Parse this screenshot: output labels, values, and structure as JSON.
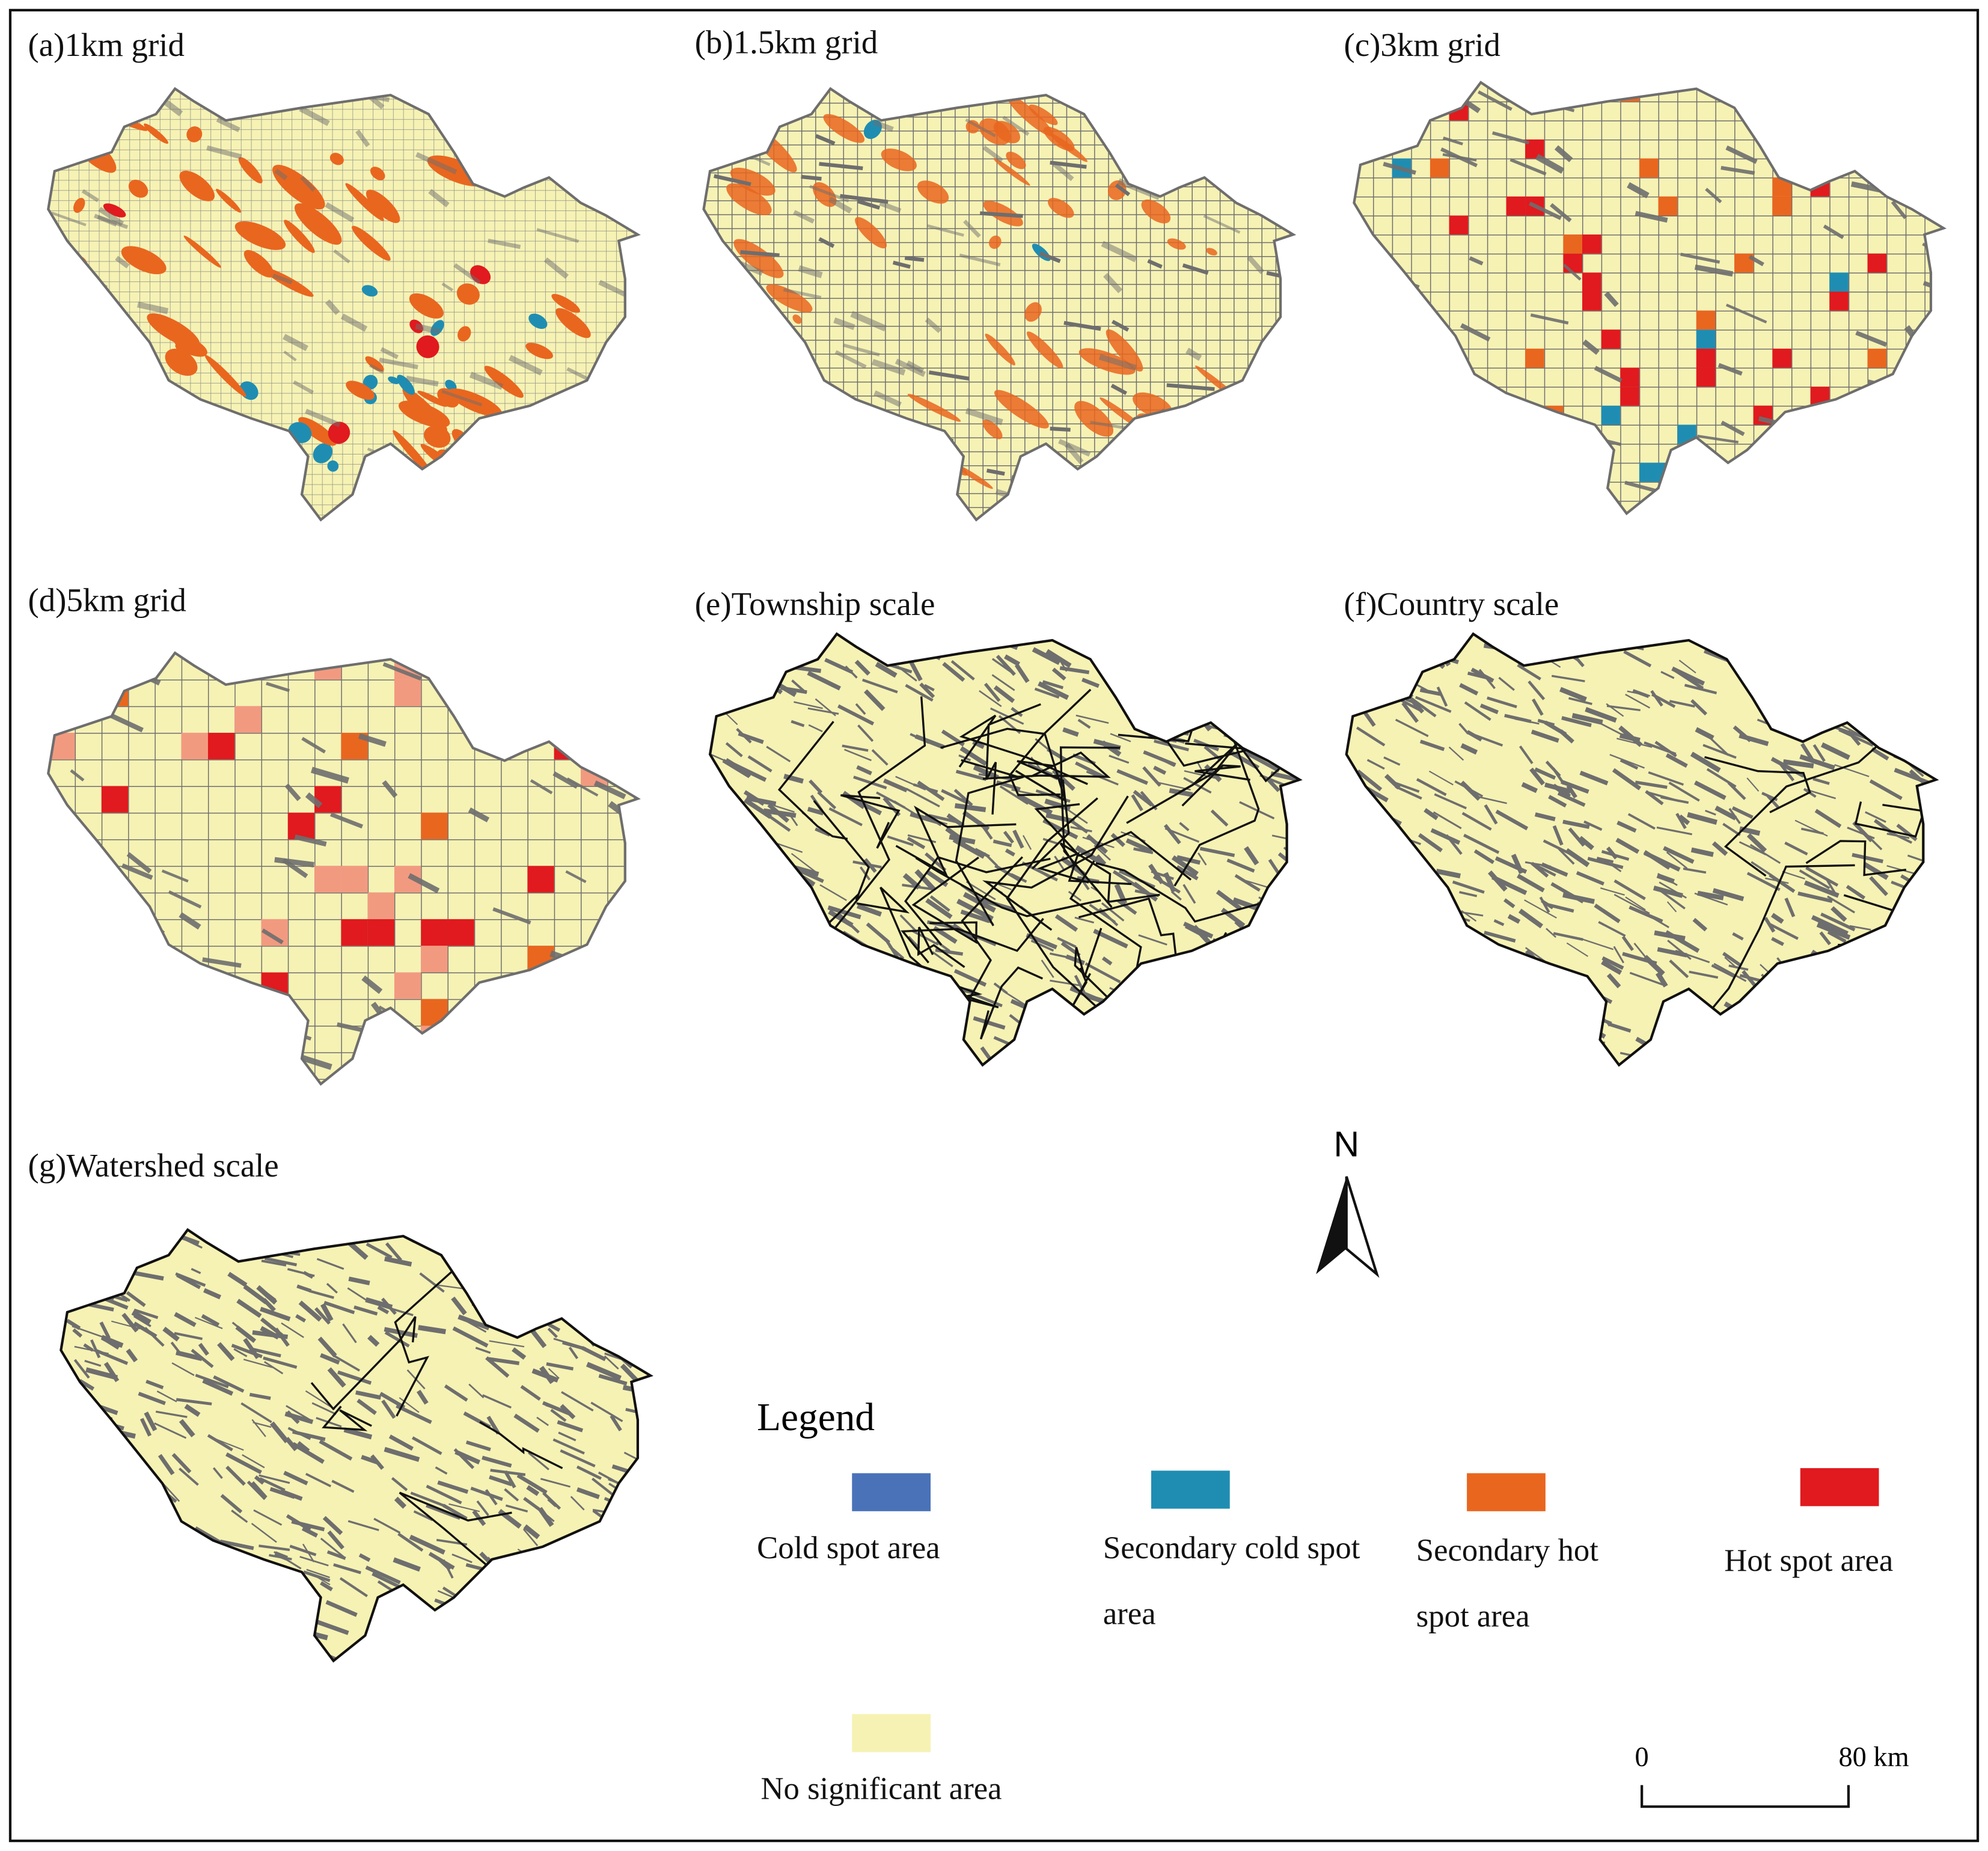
{
  "panels": [
    {
      "title": "(a)1km grid"
    },
    {
      "title": "(b)1.5km grid"
    },
    {
      "title": "(c)3km grid"
    },
    {
      "title": "(d)5km grid"
    },
    {
      "title": "(e)Township scale"
    },
    {
      "title": "(f)Country scale"
    },
    {
      "title": "(g)Watershed scale"
    }
  ],
  "north_arrow": {
    "label": "N"
  },
  "legend": {
    "title": "Legend",
    "items": [
      {
        "label": "Cold spot area",
        "color": "#4a72b8"
      },
      {
        "label": "Secondary cold spot area",
        "color": "#1f8db2"
      },
      {
        "label": "Secondary hot spot area",
        "color": "#e9661f"
      },
      {
        "label": "Hot spot area",
        "color": "#e01a1e"
      },
      {
        "label": "No significant area",
        "color": "#f6f2b4"
      }
    ]
  },
  "scale_bar": {
    "start": "0",
    "end": "80 km"
  }
}
